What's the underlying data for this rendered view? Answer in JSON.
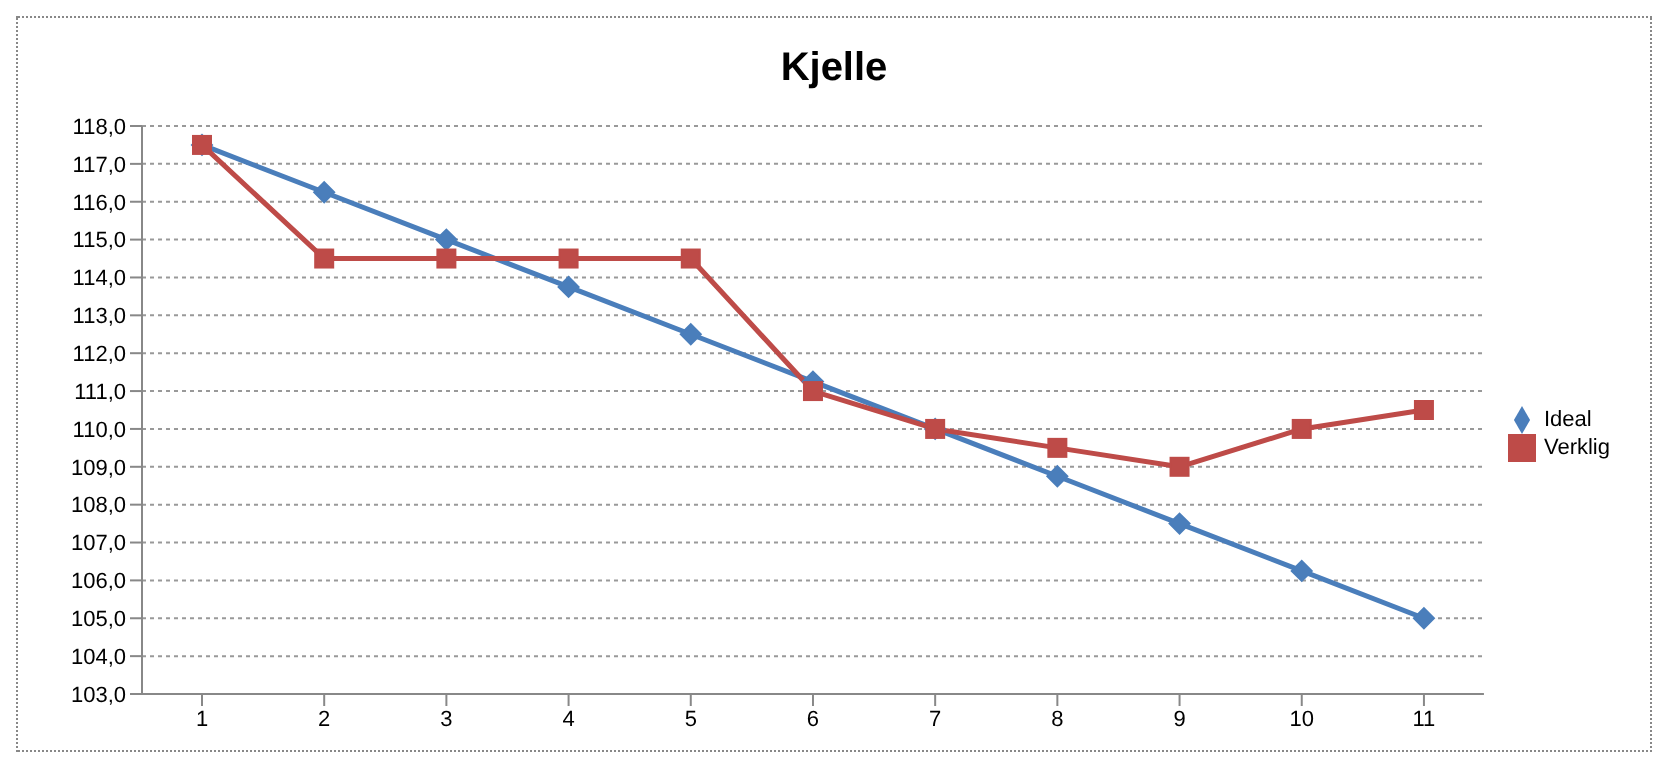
{
  "chart_data": {
    "type": "line",
    "title": "Kjelle",
    "categories": [
      "1",
      "2",
      "3",
      "4",
      "5",
      "6",
      "7",
      "8",
      "9",
      "10",
      "11"
    ],
    "series": [
      {
        "name": "Ideal",
        "color": "#4a7ebb",
        "marker": "diamond",
        "values": [
          117.5,
          116.25,
          115,
          113.75,
          112.5,
          111.25,
          110,
          108.75,
          107.5,
          106.25,
          105
        ]
      },
      {
        "name": "Verklig",
        "color": "#be4b48",
        "marker": "square",
        "values": [
          117.5,
          114.5,
          114.5,
          114.5,
          114.5,
          111,
          110,
          109.5,
          109,
          110,
          110.5
        ]
      }
    ],
    "ylim": [
      103,
      118
    ],
    "yticks": [
      {
        "value": 103,
        "label": "103,0"
      },
      {
        "value": 104,
        "label": "104,0"
      },
      {
        "value": 105,
        "label": "105,0"
      },
      {
        "value": 106,
        "label": "106,0"
      },
      {
        "value": 107,
        "label": "107,0"
      },
      {
        "value": 108,
        "label": "108,0"
      },
      {
        "value": 109,
        "label": "109,0"
      },
      {
        "value": 110,
        "label": "110,0"
      },
      {
        "value": 111,
        "label": "111,0"
      },
      {
        "value": 112,
        "label": "112,0"
      },
      {
        "value": 113,
        "label": "113,0"
      },
      {
        "value": 114,
        "label": "114,0"
      },
      {
        "value": 115,
        "label": "115,0"
      },
      {
        "value": 116,
        "label": "116,0"
      },
      {
        "value": 117,
        "label": "117,0"
      },
      {
        "value": 118,
        "label": "118,0"
      }
    ],
    "grid": "y",
    "legend": "right",
    "line_style": "solid"
  }
}
